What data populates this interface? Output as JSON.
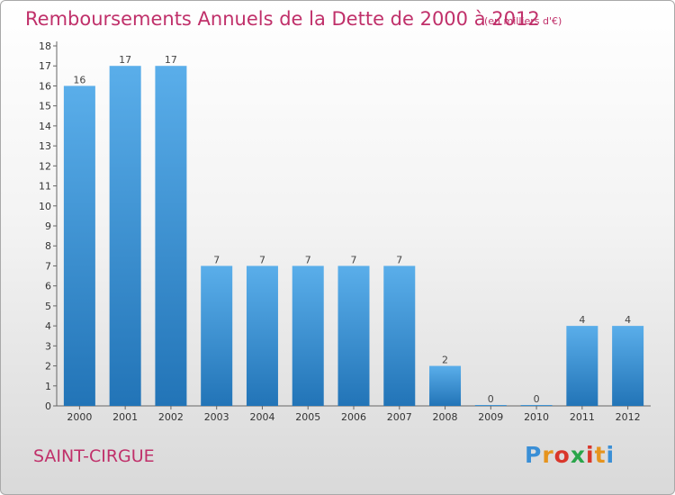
{
  "header": {
    "title": "Remboursements Annuels de la Dette de 2000 à 2012",
    "unit": "(en milliers d'€)"
  },
  "footer": {
    "commune": "SAINT-CIRGUE",
    "logo_letters": [
      "P",
      "r",
      "o",
      "x",
      "i",
      "t",
      "i"
    ],
    "logo_colors": [
      "#3a8fd6",
      "#e6941e",
      "#d9372b",
      "#2aa54a",
      "#d9372b",
      "#e6941e",
      "#3a8fd6"
    ]
  },
  "colors": {
    "bar_top": "#5aaeea",
    "bar_bottom": "#2274b7",
    "title": "#c0306a",
    "axis": "#666666"
  },
  "chart_data": {
    "type": "bar",
    "title": "Remboursements Annuels de la Dette de 2000 à 2012",
    "subtitle": "(en milliers d'€)",
    "xlabel": "",
    "ylabel": "",
    "categories": [
      "2000",
      "2001",
      "2002",
      "2003",
      "2004",
      "2005",
      "2006",
      "2007",
      "2008",
      "2009",
      "2010",
      "2011",
      "2012"
    ],
    "values": [
      16,
      17,
      17,
      7,
      7,
      7,
      7,
      7,
      2,
      0,
      0,
      4,
      4
    ],
    "data_labels": [
      "16",
      "17",
      "17",
      "7",
      "7",
      "7",
      "7",
      "7",
      "2",
      "0",
      "0",
      "4",
      "4"
    ],
    "ylim": [
      0,
      18
    ],
    "yticks": [
      "0",
      "1",
      "2",
      "3",
      "4",
      "5",
      "6",
      "7",
      "8",
      "9",
      "10",
      "11",
      "12",
      "13",
      "14",
      "15",
      "16",
      "17",
      "18"
    ],
    "grid": false,
    "legend": "none"
  }
}
